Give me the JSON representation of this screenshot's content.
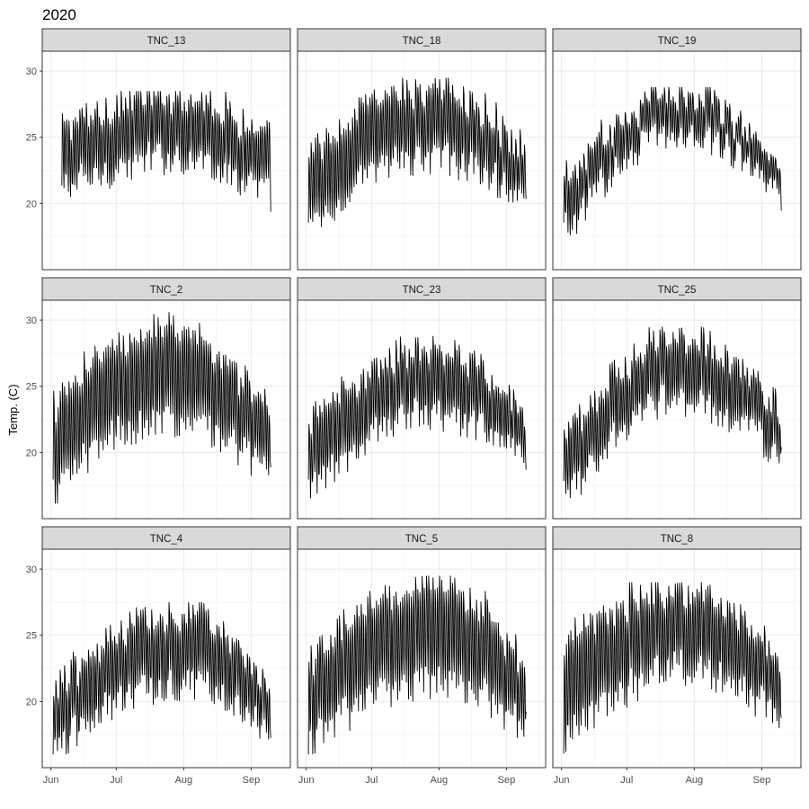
{
  "chart_data": {
    "type": "line",
    "title": "2020",
    "xlabel": "",
    "ylabel": "Temp. (C)",
    "x_ticks": [
      "Jun",
      "Jul",
      "Aug",
      "Sep"
    ],
    "x_tick_dates": [
      "2020-06-01",
      "2020-07-01",
      "2020-08-01",
      "2020-09-01"
    ],
    "xlim": [
      "2020-05-28",
      "2020-09-19"
    ],
    "y_ticks": [
      20,
      25,
      30
    ],
    "ylim": [
      15,
      31.5
    ],
    "grid": true,
    "facets": [
      {
        "name": "TNC_13",
        "start": "2020-06-06",
        "end": "2020-09-10",
        "min_start": 21.0,
        "max_start": 25.8,
        "min_peak": 23.5,
        "max_peak": 28.3,
        "min_end": 20.5,
        "max_end": 24.5,
        "peak": "2020-07-29",
        "lowest": 17.6,
        "highest": 28.5
      },
      {
        "name": "TNC_18",
        "start": "2020-06-02",
        "end": "2020-09-10",
        "min_start": 18.0,
        "max_start": 23.5,
        "min_peak": 23.5,
        "max_peak": 28.8,
        "min_end": 20.5,
        "max_end": 24.0,
        "peak": "2020-07-26",
        "lowest": 16.6,
        "highest": 29.5
      },
      {
        "name": "TNC_19",
        "start": "2020-06-02",
        "end": "2020-09-10",
        "min_start": 17.8,
        "max_start": 21.5,
        "min_peak": 25.5,
        "max_peak": 28.5,
        "min_end": 20.8,
        "max_end": 22.5,
        "peak": "2020-07-26",
        "lowest": 17.6,
        "highest": 28.8
      },
      {
        "name": "TNC_2",
        "start": "2020-06-02",
        "end": "2020-09-10",
        "min_start": 17.0,
        "max_start": 23.5,
        "min_peak": 22.5,
        "max_peak": 29.5,
        "min_end": 18.5,
        "max_end": 23.0,
        "peak": "2020-07-23",
        "lowest": 16.0,
        "highest": 30.6
      },
      {
        "name": "TNC_23",
        "start": "2020-06-02",
        "end": "2020-09-10",
        "min_start": 16.8,
        "max_start": 22.0,
        "min_peak": 23.0,
        "max_peak": 28.0,
        "min_end": 19.5,
        "max_end": 22.5,
        "peak": "2020-07-26",
        "lowest": 16.2,
        "highest": 28.8
      },
      {
        "name": "TNC_25",
        "start": "2020-06-02",
        "end": "2020-09-10",
        "min_start": 16.5,
        "max_start": 21.0,
        "min_peak": 24.0,
        "max_peak": 28.8,
        "min_end": 19.5,
        "max_end": 23.0,
        "peak": "2020-07-26",
        "lowest": 16.0,
        "highest": 29.5
      },
      {
        "name": "TNC_4",
        "start": "2020-06-02",
        "end": "2020-09-10",
        "min_start": 16.5,
        "max_start": 21.0,
        "min_peak": 21.5,
        "max_peak": 26.8,
        "min_end": 17.5,
        "max_end": 20.5,
        "peak": "2020-08-04",
        "lowest": 16.0,
        "highest": 27.5
      },
      {
        "name": "TNC_5",
        "start": "2020-06-02",
        "end": "2020-09-10",
        "min_start": 17.0,
        "max_start": 23.0,
        "min_peak": 21.5,
        "max_peak": 28.8,
        "min_end": 17.8,
        "max_end": 22.5,
        "peak": "2020-08-01",
        "lowest": 16.0,
        "highest": 29.5
      },
      {
        "name": "TNC_8",
        "start": "2020-06-02",
        "end": "2020-09-10",
        "min_start": 17.0,
        "max_start": 24.5,
        "min_peak": 22.5,
        "max_peak": 28.5,
        "min_end": 18.5,
        "max_end": 22.5,
        "peak": "2020-07-29",
        "lowest": 16.0,
        "highest": 29.0
      }
    ]
  }
}
